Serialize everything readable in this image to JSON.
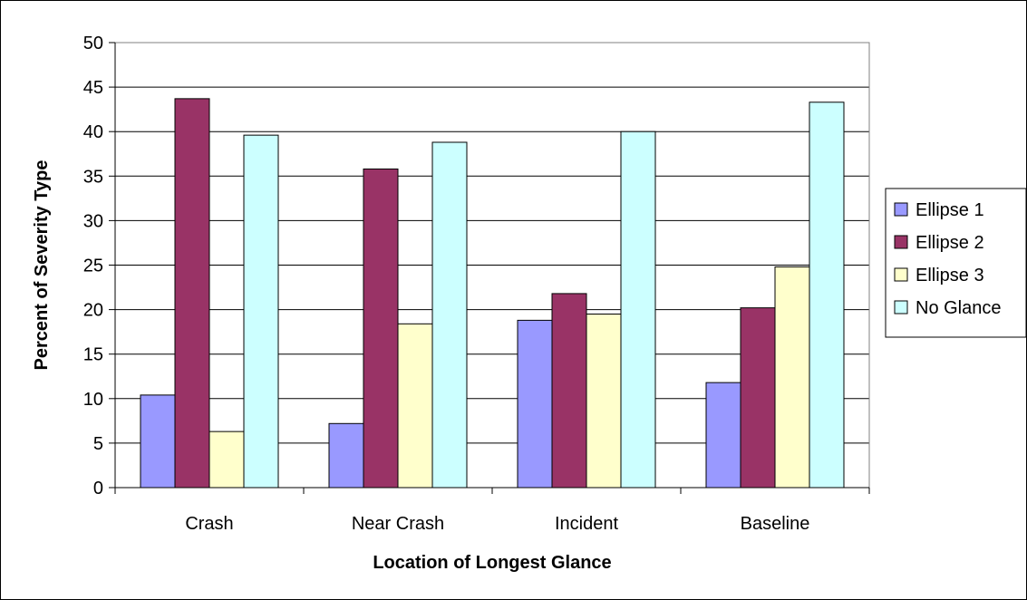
{
  "chart_data": {
    "type": "bar",
    "title": "",
    "xlabel": "Location of Longest Glance",
    "ylabel": "Percent of Severity Type",
    "categories": [
      "Crash",
      "Near Crash",
      "Incident",
      "Baseline"
    ],
    "series": [
      {
        "name": "Ellipse 1",
        "color": "#9999ff",
        "values": [
          10.4,
          7.2,
          18.8,
          11.8
        ]
      },
      {
        "name": "Ellipse 2",
        "color": "#993366",
        "values": [
          43.7,
          35.8,
          21.8,
          20.2
        ]
      },
      {
        "name": "Ellipse 3",
        "color": "#ffffcc",
        "values": [
          6.3,
          18.4,
          19.5,
          24.8
        ]
      },
      {
        "name": "No Glance",
        "color": "#ccffff",
        "values": [
          39.6,
          38.8,
          40.0,
          43.3
        ]
      }
    ],
    "ylim": [
      0,
      50
    ],
    "yticks": [
      "0",
      "5",
      "10",
      "15",
      "20",
      "25",
      "30",
      "35",
      "40",
      "45",
      "50"
    ],
    "grid": true,
    "legend_position": "right"
  }
}
